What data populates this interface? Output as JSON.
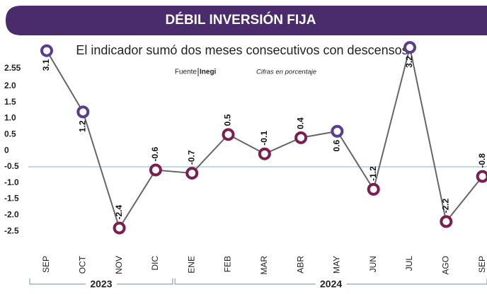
{
  "chart_data": {
    "type": "line",
    "title": "DÉBIL INVERSIÓN FIJA",
    "subtitle": "El indicador sumó dos meses consecutivos con descensos",
    "source_label": "Fuente",
    "source": "Inegi",
    "note": "Cifras en porcentaje",
    "categories": [
      "SEP",
      "OCT",
      "NOV",
      "DIC",
      "ENE",
      "FEB",
      "MAR",
      "ABR",
      "MAY",
      "JUN",
      "JUL",
      "AGO",
      "SEP"
    ],
    "values": [
      3.1,
      1.2,
      -2.4,
      -0.6,
      -0.7,
      0.5,
      -0.1,
      0.4,
      0.6,
      -1.2,
      3.2,
      -2.2,
      -0.8
    ],
    "line_color": "#666666",
    "marker_colors": [
      "#5a3d8f",
      "#5a3d8f",
      "#7a1f50",
      "#7a1f50",
      "#7a1f50",
      "#7a1f50",
      "#7a1f50",
      "#7a1f50",
      "#5a3d8f",
      "#7a1f50",
      "#5a3d8f",
      "#7a1f50",
      "#7a1f50"
    ],
    "ylim": [
      -3,
      3.4
    ],
    "yticks": [
      {
        "value": 2.55,
        "label": "2.55"
      },
      {
        "value": 2,
        "label": "2.0"
      },
      1.5,
      {
        "value": 1,
        "label": "1.0"
      },
      0.5,
      0,
      -0.5,
      {
        "value": -1,
        "label": "-1.0"
      },
      -1.5,
      {
        "value": -2,
        "label": "-2.0"
      },
      -2.5
    ],
    "hline": -0.5,
    "hline_color": "#a9cde0",
    "year_groups": [
      {
        "label": "2023",
        "span": 4
      },
      {
        "label": "2024",
        "span": 9
      }
    ]
  }
}
